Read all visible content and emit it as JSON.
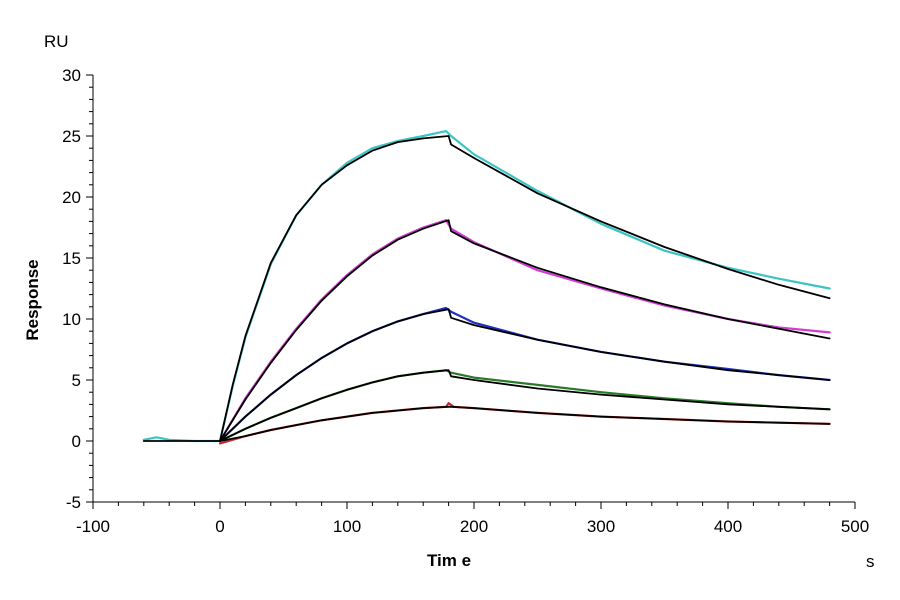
{
  "chart_data": {
    "type": "line",
    "xlabel": "Tim e",
    "ylabel": "Response",
    "x_unit": "s",
    "y_unit": "RU",
    "xlim": [
      -100,
      500
    ],
    "ylim": [
      -5,
      30
    ],
    "xticks": [
      -100,
      0,
      100,
      200,
      300,
      400,
      500
    ],
    "yticks": [
      -5,
      0,
      5,
      10,
      15,
      20,
      25,
      30
    ],
    "grid": false,
    "series": [
      {
        "color": "#3cc4c4",
        "points": [
          [
            -60,
            0.1
          ],
          [
            -50,
            0.3
          ],
          [
            -40,
            0.1
          ],
          [
            -20,
            0.0
          ],
          [
            0,
            0.0
          ],
          [
            10,
            4.5
          ],
          [
            20,
            8.5
          ],
          [
            40,
            14.5
          ],
          [
            60,
            18.5
          ],
          [
            80,
            21.0
          ],
          [
            100,
            22.8
          ],
          [
            120,
            24.0
          ],
          [
            140,
            24.6
          ],
          [
            160,
            25.0
          ],
          [
            178,
            25.4
          ],
          [
            182,
            25.0
          ],
          [
            200,
            23.5
          ],
          [
            250,
            20.5
          ],
          [
            300,
            17.8
          ],
          [
            350,
            15.6
          ],
          [
            400,
            14.2
          ],
          [
            440,
            13.3
          ],
          [
            480,
            12.5
          ]
        ]
      },
      {
        "color": "#d23cd2",
        "points": [
          [
            0,
            0.0
          ],
          [
            20,
            3.5
          ],
          [
            40,
            6.5
          ],
          [
            60,
            9.2
          ],
          [
            80,
            11.6
          ],
          [
            100,
            13.6
          ],
          [
            120,
            15.3
          ],
          [
            140,
            16.6
          ],
          [
            160,
            17.5
          ],
          [
            178,
            18.1
          ],
          [
            182,
            17.4
          ],
          [
            200,
            16.3
          ],
          [
            250,
            14.0
          ],
          [
            300,
            12.5
          ],
          [
            350,
            11.1
          ],
          [
            400,
            10.0
          ],
          [
            440,
            9.3
          ],
          [
            480,
            8.9
          ]
        ]
      },
      {
        "color": "#2030c0",
        "points": [
          [
            0,
            0.0
          ],
          [
            20,
            2.0
          ],
          [
            40,
            3.8
          ],
          [
            60,
            5.4
          ],
          [
            80,
            6.8
          ],
          [
            100,
            8.0
          ],
          [
            120,
            9.0
          ],
          [
            140,
            9.8
          ],
          [
            160,
            10.4
          ],
          [
            178,
            10.9
          ],
          [
            182,
            10.6
          ],
          [
            200,
            9.7
          ],
          [
            250,
            8.3
          ],
          [
            300,
            7.3
          ],
          [
            350,
            6.5
          ],
          [
            400,
            5.9
          ],
          [
            440,
            5.4
          ],
          [
            480,
            5.0
          ]
        ]
      },
      {
        "color": "#2a7a2a",
        "points": [
          [
            0,
            0.0
          ],
          [
            20,
            1.0
          ],
          [
            40,
            1.9
          ],
          [
            60,
            2.7
          ],
          [
            80,
            3.5
          ],
          [
            100,
            4.2
          ],
          [
            120,
            4.8
          ],
          [
            140,
            5.3
          ],
          [
            160,
            5.6
          ],
          [
            178,
            5.8
          ],
          [
            182,
            5.6
          ],
          [
            200,
            5.2
          ],
          [
            250,
            4.6
          ],
          [
            300,
            4.0
          ],
          [
            350,
            3.5
          ],
          [
            400,
            3.1
          ],
          [
            440,
            2.8
          ],
          [
            480,
            2.6
          ]
        ]
      },
      {
        "color": "#c02a2a",
        "points": [
          [
            0,
            -0.2
          ],
          [
            20,
            0.4
          ],
          [
            40,
            0.9
          ],
          [
            60,
            1.3
          ],
          [
            80,
            1.7
          ],
          [
            100,
            2.0
          ],
          [
            120,
            2.3
          ],
          [
            140,
            2.5
          ],
          [
            160,
            2.7
          ],
          [
            178,
            2.8
          ],
          [
            180,
            3.1
          ],
          [
            184,
            2.8
          ],
          [
            200,
            2.7
          ],
          [
            250,
            2.3
          ],
          [
            300,
            2.0
          ],
          [
            350,
            1.8
          ],
          [
            400,
            1.6
          ],
          [
            440,
            1.5
          ],
          [
            480,
            1.4
          ]
        ]
      },
      {
        "color": "#000000",
        "points": [
          [
            -60,
            0.0
          ],
          [
            0,
            0.0
          ],
          [
            10,
            4.6
          ],
          [
            20,
            8.6
          ],
          [
            40,
            14.6
          ],
          [
            60,
            18.5
          ],
          [
            80,
            21.0
          ],
          [
            100,
            22.6
          ],
          [
            120,
            23.8
          ],
          [
            140,
            24.5
          ],
          [
            160,
            24.8
          ],
          [
            180,
            25.0
          ],
          [
            182,
            24.3
          ],
          [
            200,
            23.2
          ],
          [
            250,
            20.3
          ],
          [
            300,
            18.0
          ],
          [
            350,
            15.9
          ],
          [
            400,
            14.1
          ],
          [
            440,
            12.8
          ],
          [
            480,
            11.7
          ]
        ]
      },
      {
        "color": "#000000",
        "points": [
          [
            0,
            0.0
          ],
          [
            20,
            3.4
          ],
          [
            40,
            6.4
          ],
          [
            60,
            9.1
          ],
          [
            80,
            11.5
          ],
          [
            100,
            13.5
          ],
          [
            120,
            15.2
          ],
          [
            140,
            16.5
          ],
          [
            160,
            17.4
          ],
          [
            180,
            18.1
          ],
          [
            182,
            17.2
          ],
          [
            200,
            16.2
          ],
          [
            250,
            14.2
          ],
          [
            300,
            12.6
          ],
          [
            350,
            11.2
          ],
          [
            400,
            10.0
          ],
          [
            440,
            9.2
          ],
          [
            480,
            8.4
          ]
        ]
      },
      {
        "color": "#000000",
        "points": [
          [
            0,
            0.0
          ],
          [
            20,
            2.0
          ],
          [
            40,
            3.8
          ],
          [
            60,
            5.4
          ],
          [
            80,
            6.8
          ],
          [
            100,
            8.0
          ],
          [
            120,
            9.0
          ],
          [
            140,
            9.8
          ],
          [
            160,
            10.4
          ],
          [
            180,
            10.8
          ],
          [
            182,
            10.1
          ],
          [
            200,
            9.5
          ],
          [
            250,
            8.3
          ],
          [
            300,
            7.3
          ],
          [
            350,
            6.5
          ],
          [
            400,
            5.8
          ],
          [
            440,
            5.4
          ],
          [
            480,
            5.0
          ]
        ]
      },
      {
        "color": "#000000",
        "points": [
          [
            0,
            0.0
          ],
          [
            20,
            1.0
          ],
          [
            40,
            1.9
          ],
          [
            60,
            2.7
          ],
          [
            80,
            3.5
          ],
          [
            100,
            4.2
          ],
          [
            120,
            4.8
          ],
          [
            140,
            5.3
          ],
          [
            160,
            5.6
          ],
          [
            180,
            5.8
          ],
          [
            182,
            5.3
          ],
          [
            200,
            5.0
          ],
          [
            250,
            4.3
          ],
          [
            300,
            3.8
          ],
          [
            350,
            3.4
          ],
          [
            400,
            3.0
          ],
          [
            440,
            2.8
          ],
          [
            480,
            2.6
          ]
        ]
      },
      {
        "color": "#000000",
        "points": [
          [
            0,
            0.0
          ],
          [
            20,
            0.4
          ],
          [
            40,
            0.9
          ],
          [
            60,
            1.3
          ],
          [
            80,
            1.7
          ],
          [
            100,
            2.0
          ],
          [
            120,
            2.3
          ],
          [
            140,
            2.5
          ],
          [
            160,
            2.7
          ],
          [
            180,
            2.8
          ],
          [
            182,
            2.8
          ],
          [
            200,
            2.7
          ],
          [
            250,
            2.3
          ],
          [
            300,
            2.0
          ],
          [
            350,
            1.8
          ],
          [
            400,
            1.6
          ],
          [
            440,
            1.5
          ],
          [
            480,
            1.4
          ]
        ]
      }
    ]
  }
}
